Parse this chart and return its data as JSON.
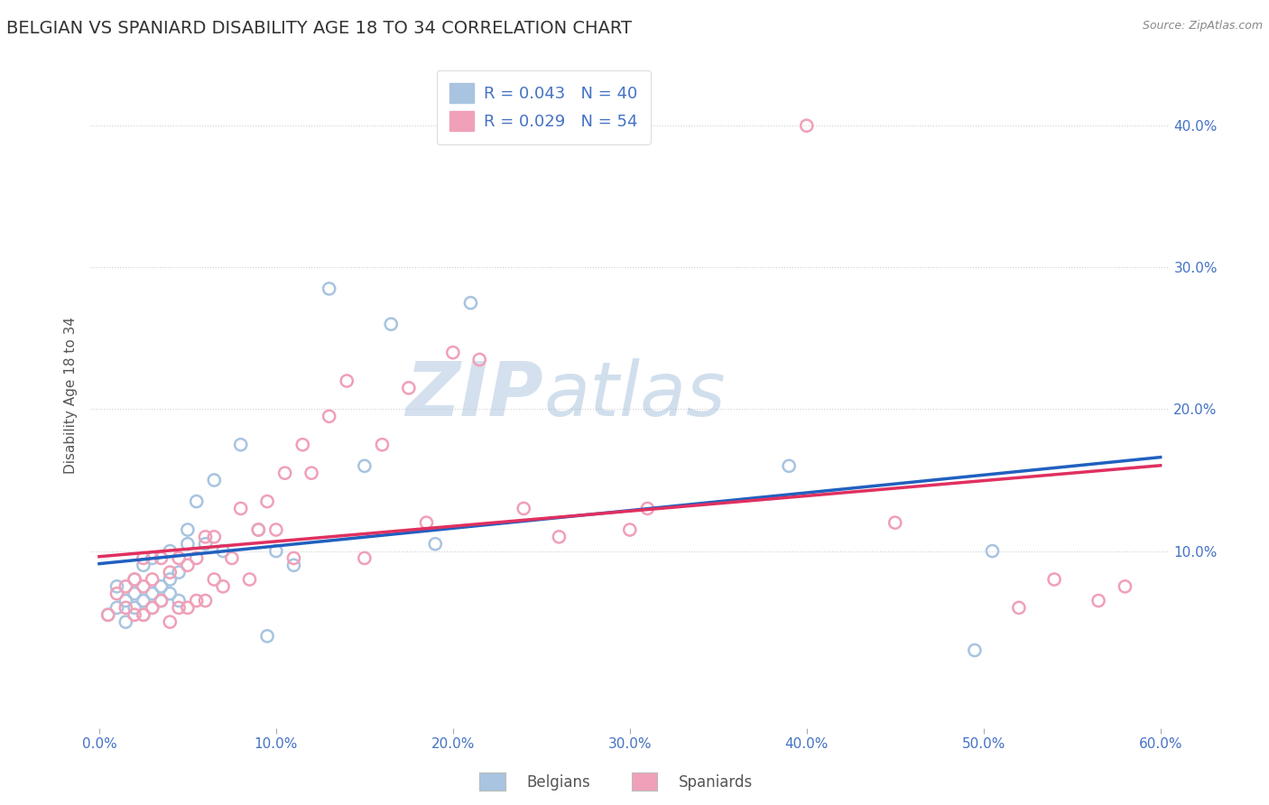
{
  "title": "BELGIAN VS SPANIARD DISABILITY AGE 18 TO 34 CORRELATION CHART",
  "source": "Source: ZipAtlas.com",
  "ylabel": "Disability Age 18 to 34",
  "xlim": [
    -0.005,
    0.605
  ],
  "ylim": [
    -0.025,
    0.445
  ],
  "xticks": [
    0.0,
    0.1,
    0.2,
    0.3,
    0.4,
    0.5,
    0.6
  ],
  "yticks": [
    0.1,
    0.2,
    0.3,
    0.4
  ],
  "ytick_labels": [
    "10.0%",
    "20.0%",
    "30.0%",
    "40.0%"
  ],
  "xtick_labels": [
    "0.0%",
    "10.0%",
    "20.0%",
    "30.0%",
    "40.0%",
    "50.0%",
    "60.0%"
  ],
  "belgian_color": "#a8c4e0",
  "spaniard_color": "#f0a0b8",
  "belgian_edge_color": "#7aacd0",
  "spaniard_edge_color": "#e080a0",
  "belgian_line_color": "#2060c0",
  "spaniard_line_color": "#e03060",
  "legend_text_color": "#2060c0",
  "belgian_R": 0.043,
  "belgian_N": 40,
  "spaniard_R": 0.029,
  "spaniard_N": 54,
  "watermark_zip": "ZIP",
  "watermark_atlas": "atlas",
  "background_color": "#ffffff",
  "grid_color": "#d0d0d0",
  "belgian_x": [
    0.005,
    0.01,
    0.01,
    0.015,
    0.015,
    0.02,
    0.02,
    0.02,
    0.025,
    0.025,
    0.025,
    0.03,
    0.03,
    0.03,
    0.035,
    0.035,
    0.04,
    0.04,
    0.04,
    0.045,
    0.045,
    0.05,
    0.05,
    0.055,
    0.06,
    0.065,
    0.07,
    0.08,
    0.09,
    0.095,
    0.1,
    0.11,
    0.13,
    0.15,
    0.165,
    0.19,
    0.21,
    0.39,
    0.495,
    0.505
  ],
  "belgian_y": [
    0.055,
    0.06,
    0.075,
    0.05,
    0.065,
    0.06,
    0.07,
    0.08,
    0.055,
    0.065,
    0.09,
    0.06,
    0.07,
    0.095,
    0.065,
    0.075,
    0.07,
    0.08,
    0.1,
    0.065,
    0.085,
    0.105,
    0.115,
    0.135,
    0.105,
    0.15,
    0.1,
    0.175,
    0.115,
    0.04,
    0.1,
    0.09,
    0.285,
    0.16,
    0.26,
    0.105,
    0.275,
    0.16,
    0.03,
    0.1
  ],
  "spaniard_x": [
    0.005,
    0.01,
    0.015,
    0.015,
    0.02,
    0.02,
    0.025,
    0.025,
    0.025,
    0.03,
    0.03,
    0.035,
    0.035,
    0.04,
    0.04,
    0.045,
    0.045,
    0.05,
    0.05,
    0.055,
    0.055,
    0.06,
    0.06,
    0.065,
    0.065,
    0.07,
    0.075,
    0.08,
    0.085,
    0.09,
    0.095,
    0.1,
    0.105,
    0.11,
    0.115,
    0.12,
    0.13,
    0.14,
    0.15,
    0.16,
    0.175,
    0.185,
    0.2,
    0.215,
    0.24,
    0.26,
    0.3,
    0.31,
    0.4,
    0.45,
    0.52,
    0.54,
    0.565,
    0.58
  ],
  "spaniard_y": [
    0.055,
    0.07,
    0.06,
    0.075,
    0.055,
    0.08,
    0.055,
    0.075,
    0.095,
    0.06,
    0.08,
    0.065,
    0.095,
    0.05,
    0.085,
    0.06,
    0.095,
    0.06,
    0.09,
    0.065,
    0.095,
    0.065,
    0.11,
    0.08,
    0.11,
    0.075,
    0.095,
    0.13,
    0.08,
    0.115,
    0.135,
    0.115,
    0.155,
    0.095,
    0.175,
    0.155,
    0.195,
    0.22,
    0.095,
    0.175,
    0.215,
    0.12,
    0.24,
    0.235,
    0.13,
    0.11,
    0.115,
    0.13,
    0.4,
    0.12,
    0.06,
    0.08,
    0.065,
    0.075
  ],
  "title_fontsize": 14,
  "tick_fontsize": 11,
  "ylabel_fontsize": 11,
  "dot_size": 90,
  "line_width": 2.5
}
